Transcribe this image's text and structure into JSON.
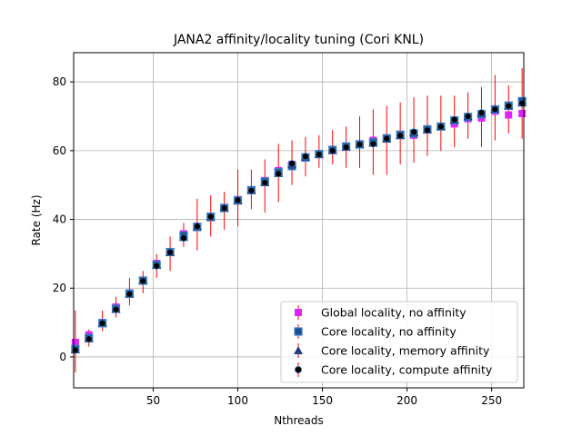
{
  "chart_data": {
    "type": "scatter",
    "title": "JANA2 affinity/locality tuning (Cori KNL)",
    "xlabel": "Nthreads",
    "ylabel": "Rate (Hz)",
    "xlim": [
      3,
      269
    ],
    "ylim": [
      -9,
      88.5
    ],
    "xticks": [
      50,
      100,
      150,
      200,
      250
    ],
    "yticks": [
      0,
      20,
      40,
      60,
      80
    ],
    "grid": true,
    "legend_position": "lower-right",
    "x": [
      4,
      12,
      20,
      28,
      36,
      44,
      52,
      60,
      68,
      76,
      84,
      92,
      100,
      108,
      116,
      124,
      132,
      140,
      148,
      156,
      164,
      172,
      180,
      188,
      196,
      204,
      212,
      220,
      228,
      236,
      244,
      252,
      260,
      268
    ],
    "series": [
      {
        "name": "Global locality, no affinity",
        "marker": "square",
        "color": "#dd22ff",
        "values": [
          4.2,
          6.4,
          10.0,
          14.5,
          18.6,
          22.3,
          27.2,
          30.6,
          35.8,
          38.0,
          40.6,
          43.5,
          45.8,
          48.4,
          51.3,
          54.2,
          56.0,
          58.2,
          59.0,
          60.0,
          61.0,
          62.0,
          63.0,
          63.5,
          64.8,
          64.5,
          66.0,
          67.1,
          67.8,
          69.3,
          69.5,
          71.5,
          70.4,
          70.8
        ]
      },
      {
        "name": "Core locality, no affinity",
        "marker": "square",
        "color": "#1f4f8f",
        "values": [
          2.3,
          5.5,
          9.8,
          14.0,
          18.4,
          22.2,
          26.8,
          30.5,
          35.3,
          37.8,
          40.8,
          43.3,
          45.5,
          48.5,
          51.0,
          53.7,
          55.5,
          58.0,
          59.0,
          60.2,
          61.2,
          61.8,
          62.4,
          63.6,
          64.6,
          65.0,
          66.2,
          67.0,
          68.8,
          69.8,
          70.6,
          72.0,
          73.1,
          74.4
        ]
      },
      {
        "name": "Core locality, memory affinity",
        "marker": "triangle",
        "color": "#1f3f7f",
        "values": [
          2.1,
          5.3,
          9.9,
          13.9,
          18.3,
          22.2,
          26.7,
          30.4,
          34.8,
          37.9,
          40.6,
          43.4,
          45.6,
          48.5,
          50.7,
          53.4,
          56.1,
          58.2,
          58.9,
          60.1,
          61.1,
          61.9,
          62.2,
          63.4,
          64.4,
          65.3,
          66.1,
          67.1,
          68.9,
          69.9,
          70.9,
          72.1,
          73.0,
          73.9
        ]
      },
      {
        "name": "Core locality, compute affinity",
        "marker": "circle",
        "color": "#000000",
        "values": [
          2.0,
          5.2,
          9.8,
          13.8,
          18.3,
          22.1,
          26.5,
          30.4,
          34.6,
          38.0,
          40.8,
          43.3,
          45.6,
          48.4,
          50.7,
          53.3,
          56.2,
          58.3,
          58.9,
          60.0,
          61.0,
          61.8,
          62.0,
          63.5,
          64.4,
          65.4,
          66.0,
          67.0,
          69.0,
          70.0,
          71.0,
          72.0,
          73.0,
          73.8
        ]
      }
    ],
    "error_bars": {
      "color": "#ff0000",
      "low": [
        -4.5,
        3.0,
        7.5,
        11.5,
        15.0,
        18.5,
        23.0,
        25.0,
        32.0,
        31.0,
        35.0,
        37.0,
        38.0,
        43.0,
        42.0,
        45.0,
        50.0,
        52.5,
        55.0,
        56.0,
        55.0,
        55.0,
        53.0,
        53.0,
        56.0,
        56.5,
        58.5,
        60.0,
        61.0,
        63.5,
        61.0,
        63.0,
        65.0,
        63.5
      ],
      "high": [
        13.5,
        8.0,
        13.5,
        17.5,
        23.0,
        25.0,
        30.0,
        35.0,
        39.0,
        46.0,
        47.0,
        48.0,
        54.5,
        54.5,
        57.5,
        62.0,
        63.0,
        64.0,
        64.5,
        66.0,
        67.0,
        70.0,
        72.0,
        73.0,
        74.0,
        75.5,
        76.0,
        76.0,
        76.0,
        77.0,
        78.5,
        82.0,
        79.0,
        84.0
      ]
    }
  }
}
